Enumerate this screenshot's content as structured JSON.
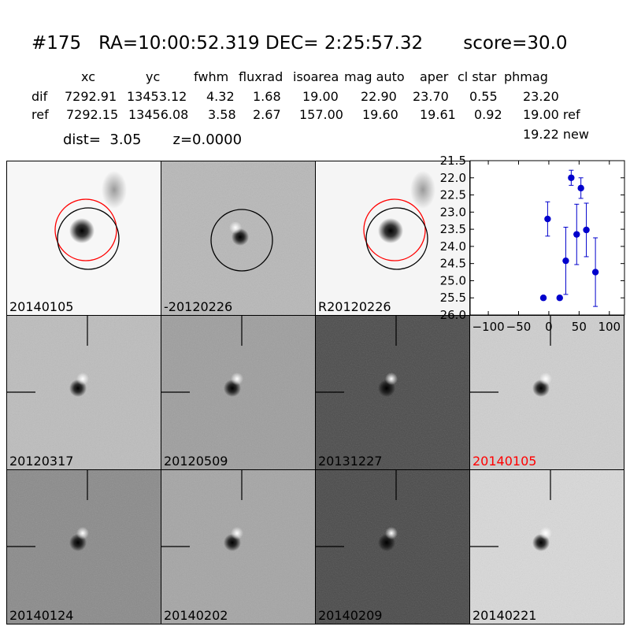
{
  "header": {
    "title": "#175   RA=10:00:52.319 DEC= 2:25:57.32       score=30.0",
    "columns": [
      "xc",
      "yc",
      "fwhm",
      "fluxrad",
      "isoarea",
      "mag auto",
      "aper",
      "cl star",
      "phmag"
    ],
    "rows": [
      {
        "label": "dif",
        "values": [
          "7292.91",
          "13453.12",
          "4.32",
          "1.68",
          "19.00",
          "22.90",
          "23.70",
          "0.55",
          "23.20"
        ]
      },
      {
        "label": "ref",
        "values": [
          "7292.15",
          "13456.08",
          "3.58",
          "2.67",
          "157.00",
          "19.60",
          "19.61",
          "0.92",
          "19.00 ref"
        ]
      }
    ],
    "extra_phmag": "19.22 new",
    "dist_line": "dist=  3.05       z=0.0000"
  },
  "stamps": [
    {
      "label": "20140105",
      "label_color": "#000000",
      "kind": "science"
    },
    {
      "label": "-20120226",
      "label_color": "#000000",
      "kind": "diff"
    },
    {
      "label": "R20120226",
      "label_color": "#000000",
      "kind": "science"
    },
    {
      "label": "20120317",
      "label_color": "#000000",
      "kind": "epoch"
    },
    {
      "label": "20120509",
      "label_color": "#000000",
      "kind": "epoch"
    },
    {
      "label": "20131227",
      "label_color": "#000000",
      "kind": "epoch"
    },
    {
      "label": "20140105",
      "label_color": "#ff0000",
      "kind": "epoch"
    },
    {
      "label": "20140124",
      "label_color": "#000000",
      "kind": "epoch"
    },
    {
      "label": "20140202",
      "label_color": "#000000",
      "kind": "epoch"
    },
    {
      "label": "20140209",
      "label_color": "#000000",
      "kind": "epoch"
    },
    {
      "label": "20140221",
      "label_color": "#000000",
      "kind": "epoch"
    }
  ],
  "chart_data": {
    "type": "scatter",
    "title": "",
    "xlabel": "",
    "ylabel": "",
    "xlim": [
      -130,
      125
    ],
    "ylim": [
      26.0,
      21.5
    ],
    "y_inverted": true,
    "x_ticks": [
      -100,
      -50,
      0,
      50,
      100
    ],
    "x_tick_labels": [
      "−100",
      "−50",
      "0",
      "50",
      "100"
    ],
    "y_ticks": [
      21.5,
      22.0,
      22.5,
      23.0,
      23.5,
      24.0,
      24.5,
      25.0,
      25.5,
      26.0
    ],
    "y_tick_labels": [
      "21.5",
      "22.0",
      "22.5",
      "23.0",
      "23.5",
      "24.0",
      "24.5",
      "25.0",
      "25.5",
      "26.0"
    ],
    "color": "#0000cc",
    "series": [
      {
        "points": [
          {
            "x": -9,
            "y": 25.5,
            "err": 0.05
          },
          {
            "x": -2,
            "y": 23.2,
            "err": 0.5
          },
          {
            "x": 18,
            "y": 25.5,
            "err": 0.05
          },
          {
            "x": 28,
            "y": 24.42,
            "err": 0.98
          },
          {
            "x": 37,
            "y": 22.0,
            "err": 0.22
          },
          {
            "x": 46,
            "y": 23.65,
            "err": 0.88
          },
          {
            "x": 53,
            "y": 22.3,
            "err": 0.3
          },
          {
            "x": 62,
            "y": 23.52,
            "err": 0.78
          },
          {
            "x": 77,
            "y": 24.75,
            "err": 1.0
          }
        ]
      }
    ]
  }
}
